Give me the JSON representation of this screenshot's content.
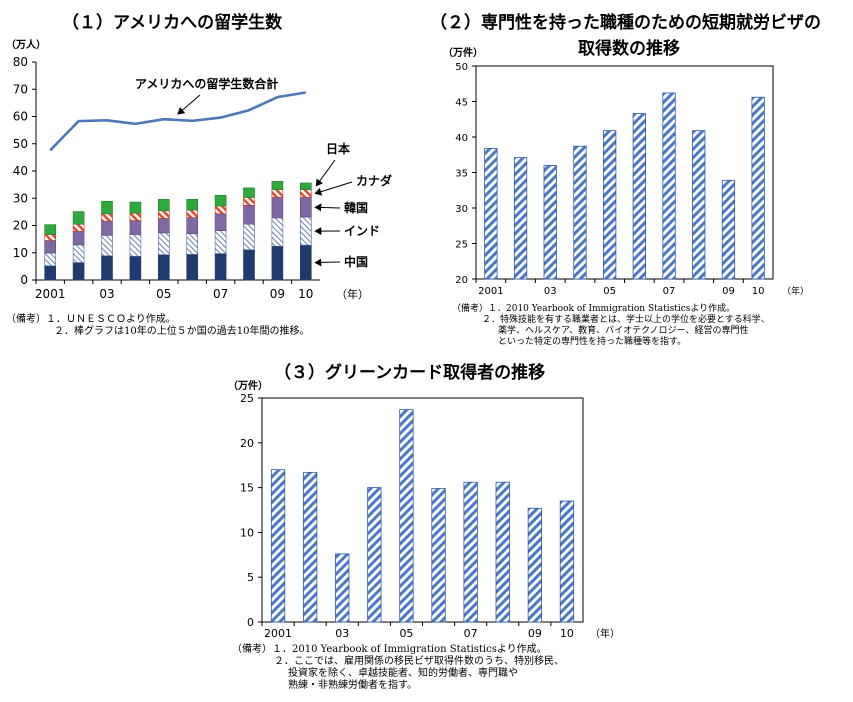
{
  "chart_data": [
    {
      "id": "c1",
      "type": "bar+line",
      "title": "（１）アメリカへの留学生数",
      "unit": "（万人）",
      "year_unit": "（年）",
      "categories": [
        "2001",
        "",
        "03",
        "",
        "05",
        "",
        "07",
        "",
        "09",
        "10"
      ],
      "ylim": [
        0,
        80
      ],
      "yticks": [
        0,
        10,
        20,
        30,
        40,
        50,
        60,
        70,
        80
      ],
      "stacked_series": [
        {
          "name": "中国",
          "values": [
            5.2,
            6.4,
            8.9,
            8.7,
            9.3,
            9.4,
            9.7,
            11.1,
            12.4,
            12.8
          ]
        },
        {
          "name": "インド",
          "values": [
            4.7,
            6.5,
            7.5,
            8.0,
            8.0,
            7.6,
            8.4,
            9.4,
            10.4,
            10.3
          ]
        },
        {
          "name": "韓国",
          "values": [
            4.6,
            5.0,
            5.2,
            5.1,
            5.3,
            5.9,
            6.2,
            6.9,
            7.6,
            7.2
          ]
        },
        {
          "name": "カナダ",
          "values": [
            2.2,
            2.6,
            2.7,
            2.7,
            2.8,
            2.8,
            2.9,
            2.9,
            2.8,
            2.9
          ]
        },
        {
          "name": "日本",
          "values": [
            3.6,
            4.6,
            4.6,
            4.1,
            4.2,
            3.9,
            3.9,
            3.5,
            3.0,
            2.4
          ]
        }
      ],
      "line_series": {
        "name": "アメリカへの留学生数合計",
        "values": [
          47.6,
          58.3,
          58.6,
          57.3,
          59.0,
          58.4,
          59.6,
          62.3,
          67.1,
          68.8
        ]
      },
      "legend_labels": [
        "日本",
        "カナダ",
        "韓国",
        "インド",
        "中国"
      ],
      "line_label": "アメリカへの留学生数合計",
      "colors": {
        "china": "#1f3b6e",
        "india_stroke": "#4a6aa5",
        "korea": "#8068a5",
        "canada_stripe": "#e24b2e",
        "japan": "#2fa83c",
        "line": "#4a78b8"
      },
      "notes": [
        "（備考）１．ＵＮＥＳＣＯより作成。",
        "２．棒グラフは10年の上位５か国の過去10年間の推移。"
      ]
    },
    {
      "id": "c2",
      "type": "bar",
      "title_lines": [
        "（２）専門性を持った職種のための短期就労ビザの",
        "取得数の推移"
      ],
      "unit": "（万件）",
      "year_unit": "（年）",
      "categories": [
        "2001",
        "",
        "03",
        "",
        "05",
        "",
        "07",
        "",
        "09",
        "10"
      ],
      "values": [
        38.4,
        37.1,
        36.0,
        38.7,
        40.9,
        43.3,
        46.2,
        40.9,
        33.9,
        45.6
      ],
      "ylim": [
        20,
        50
      ],
      "yticks": [
        20,
        25,
        30,
        35,
        40,
        45,
        50
      ],
      "colors": {
        "stripe": "#4a78c8"
      },
      "notes": [
        "（備考）１．2010 Yearbook of Immigration Statisticsより作成。",
        "２．特殊技能を有する職業者とは、学士以上の学位を必要とする科学、",
        "薬学、ヘルスケア、教育、バイオテクノロジー、経営の専門性",
        "といった特定の専門性を持った職種等を指す。"
      ]
    },
    {
      "id": "c3",
      "type": "bar",
      "title": "（３）グリーンカード取得者の推移",
      "unit": "（万件）",
      "year_unit": "（年）",
      "categories": [
        "2001",
        "",
        "03",
        "",
        "05",
        "",
        "07",
        "",
        "09",
        "10"
      ],
      "values": [
        17.0,
        16.7,
        7.6,
        15.0,
        23.7,
        14.9,
        15.6,
        15.6,
        12.7,
        13.5
      ],
      "ylim": [
        0,
        25
      ],
      "yticks": [
        0,
        5,
        10,
        15,
        20,
        25
      ],
      "colors": {
        "stripe": "#4a78c8"
      },
      "notes": [
        "（備考）１．2010 Yearbook of Immigration Statisticsより作成。",
        "２．ここでは、雇用関係の移民ビザ取得件数のうち、特別移民、",
        "投資家を除く、卓越技能者、知的労働者、専門職や",
        "熟練・非熟練労働者を指す。"
      ]
    }
  ]
}
